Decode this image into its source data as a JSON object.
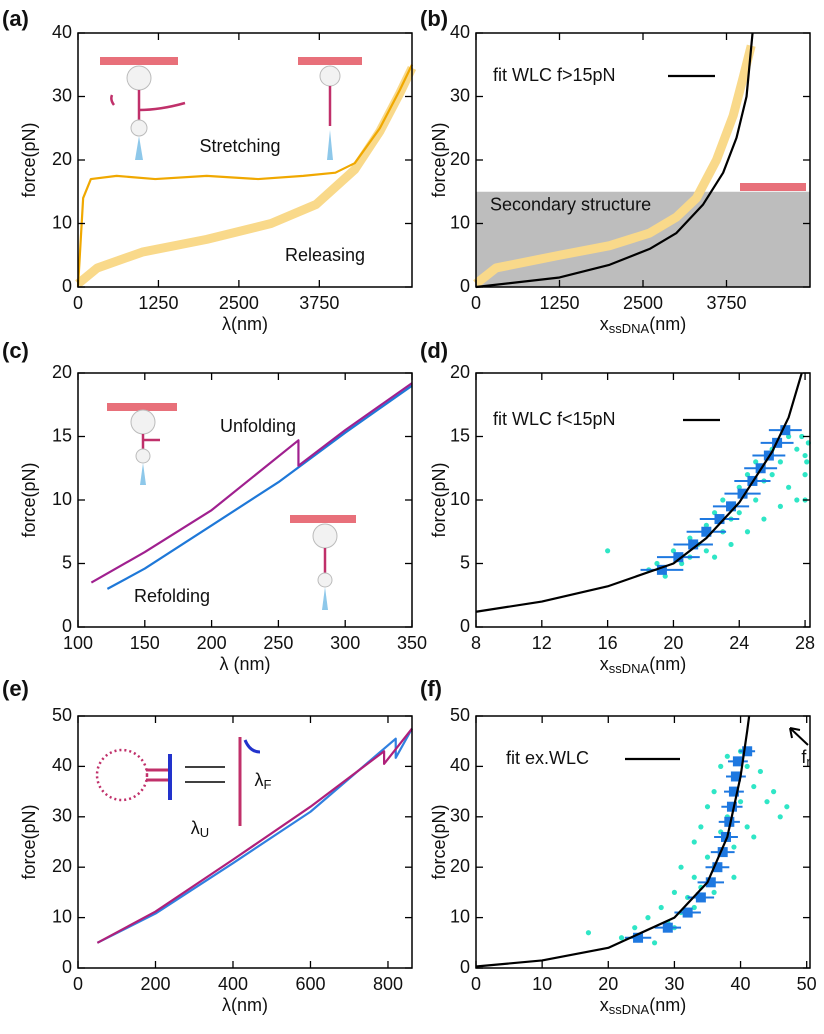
{
  "chart_data": [
    {
      "type": "line",
      "panel_label": "(a)",
      "xlabel": "λ(nm)",
      "ylabel": "force(pN)",
      "xlim": [
        0,
        5190
      ],
      "xticks": [
        0,
        1250,
        2500,
        3750
      ],
      "ylim": [
        0,
        40
      ],
      "yticks": [
        0,
        10,
        20,
        30,
        40
      ],
      "annotations": [
        "Stretching",
        "Releasing"
      ],
      "series": [
        {
          "type": "band",
          "color": "#f9d98a",
          "x": [
            0,
            300,
            1000,
            2000,
            3000,
            3700,
            4300,
            4690,
            5000,
            5190
          ],
          "values": [
            0.5,
            3,
            5.5,
            7.5,
            10,
            13,
            18.5,
            24.5,
            30.5,
            34.5
          ]
        },
        {
          "type": "line",
          "color": "#f0a800",
          "x": [
            0,
            80,
            200,
            600,
            1200,
            2000,
            2800,
            3500,
            4000,
            4300,
            4690,
            5000,
            5190
          ],
          "values": [
            0,
            14,
            17,
            17.5,
            17,
            17.5,
            17,
            17.5,
            18,
            19.5,
            25,
            31,
            35
          ]
        }
      ]
    },
    {
      "type": "line",
      "panel_label": "(b)",
      "xlabel": {
        "text": "x",
        "sub": "ssDNA",
        "after": "(nm)"
      },
      "ylabel": "force(pN)",
      "xlim": [
        0,
        5000
      ],
      "xticks": [
        0,
        1250,
        2500,
        3750
      ],
      "ylim": [
        0,
        40
      ],
      "yticks": [
        0,
        10,
        20,
        30,
        40
      ],
      "shaded_region": {
        "label": "Secondary structure",
        "ylim": [
          0,
          15
        ],
        "color": "#bdbdbd"
      },
      "series": [
        {
          "type": "band",
          "color": "#f9d98a",
          "x": [
            0,
            300,
            1250,
            2000,
            2600,
            3000,
            3300,
            3600,
            3850,
            4000,
            4120
          ],
          "values": [
            0.5,
            3,
            5,
            6.5,
            8.5,
            11,
            14,
            20,
            27,
            33,
            38
          ]
        },
        {
          "type": "line",
          "name": "fit WLC f>15pN",
          "color": "#000000",
          "x": [
            0,
            1250,
            2000,
            2600,
            3000,
            3400,
            3700,
            3900,
            4050,
            4140
          ],
          "values": [
            0,
            1.5,
            3.5,
            6,
            8.5,
            13,
            18,
            23.5,
            30,
            40
          ]
        }
      ]
    },
    {
      "type": "line",
      "panel_label": "(c)",
      "xlabel": "λ (nm)",
      "ylabel": "force(pN)",
      "xlim": [
        100,
        350
      ],
      "xticks": [
        100,
        150,
        200,
        250,
        300,
        350
      ],
      "ylim": [
        0,
        20
      ],
      "yticks": [
        0,
        5,
        10,
        15,
        20
      ],
      "annotations": [
        "Unfolding",
        "Refolding"
      ],
      "series": [
        {
          "type": "line",
          "color": "#1e78d8",
          "x": [
            122,
            150,
            200,
            250,
            300,
            350
          ],
          "values": [
            3,
            4.6,
            8,
            11.4,
            15.3,
            19
          ]
        },
        {
          "type": "line",
          "color": "#a0208f",
          "x": [
            110,
            150,
            200,
            265,
            265,
            300,
            350
          ],
          "values": [
            3.5,
            5.9,
            9.2,
            14.7,
            12.7,
            15.5,
            19.2
          ]
        }
      ]
    },
    {
      "type": "scatter",
      "panel_label": "(d)",
      "xlabel": {
        "text": "x",
        "sub": "ssDNA",
        "after": "(nm)"
      },
      "ylabel": "force(pN)",
      "xlim": [
        8,
        28.3
      ],
      "xticks": [
        8,
        12,
        16,
        20,
        24,
        28
      ],
      "ylim": [
        0,
        20
      ],
      "yticks": [
        0,
        5,
        10,
        15,
        20
      ],
      "series": [
        {
          "type": "scatter",
          "color": "#2fe6c6",
          "x": [
            16,
            18.5,
            19,
            19.5,
            20,
            20.5,
            21,
            21,
            21.5,
            22,
            22,
            22.5,
            23,
            23,
            23.5,
            24,
            24,
            24.5,
            25,
            25,
            25.5,
            26,
            26,
            26.5,
            27,
            27,
            27.5,
            28,
            28,
            28.2,
            27.8,
            28.1,
            23.5,
            25.5,
            27.5,
            22.5,
            26.5,
            24.5,
            28
          ],
          "values": [
            6,
            4.5,
            5,
            4,
            6,
            5,
            7,
            5.5,
            6.5,
            8,
            6,
            9,
            7.5,
            10,
            8.5,
            11,
            9,
            12,
            10,
            13,
            11.5,
            14,
            12,
            13,
            15,
            11,
            14,
            13.5,
            12,
            14.5,
            15,
            13,
            6.5,
            8.5,
            10,
            5.5,
            9.5,
            7.5,
            10
          ]
        },
        {
          "type": "binned",
          "color": "#1e78e0",
          "x": [
            19.3,
            20.3,
            21.2,
            22,
            22.8,
            23.5,
            24.2,
            24.8,
            25.3,
            25.8,
            26.3,
            26.8
          ],
          "values": [
            4.5,
            5.5,
            6.5,
            7.5,
            8.5,
            9.5,
            10.5,
            11.5,
            12.5,
            13.5,
            14.5,
            15.5
          ],
          "xerr": [
            1.3,
            1.3,
            1.2,
            1.2,
            1.2,
            1.1,
            1.1,
            1.1,
            1,
            1,
            1,
            1
          ]
        },
        {
          "type": "line",
          "name": "fit WLC f<15pN",
          "color": "#000000",
          "x": [
            8,
            12,
            16,
            20,
            22,
            24,
            26,
            27,
            27.8
          ],
          "values": [
            1.2,
            2,
            3.2,
            5,
            7,
            9.8,
            13.8,
            16.5,
            20
          ]
        }
      ]
    },
    {
      "type": "line",
      "panel_label": "(e)",
      "xlabel": "λ(nm)",
      "ylabel": "force(pN)",
      "xlim": [
        0,
        862
      ],
      "xticks": [
        0,
        200,
        400,
        600,
        800
      ],
      "ylim": [
        0,
        50
      ],
      "yticks": [
        0,
        10,
        20,
        30,
        40,
        50
      ],
      "annotations": [
        {
          "text": "λ",
          "sub": "F"
        },
        {
          "text": "λ",
          "sub": "U"
        },
        {
          "text": "f",
          "sub": "r"
        }
      ],
      "series": [
        {
          "type": "line",
          "color": "#3080e0",
          "x": [
            50,
            200,
            400,
            600,
            820,
            820,
            862
          ],
          "values": [
            5,
            10.8,
            20.8,
            31,
            45.5,
            41.7,
            47.5
          ]
        },
        {
          "type": "line",
          "color": "#b0207a",
          "x": [
            50,
            200,
            400,
            600,
            790,
            790,
            862
          ],
          "values": [
            5,
            11.2,
            21.5,
            32,
            43,
            40.5,
            47.5
          ]
        }
      ]
    },
    {
      "type": "scatter",
      "panel_label": "(f)",
      "xlabel": {
        "text": "x",
        "sub": "ssDNA",
        "after": "(nm)"
      },
      "ylabel": "force(pN)",
      "xlim": [
        0,
        50.5
      ],
      "xticks": [
        0,
        10,
        20,
        30,
        40,
        50
      ],
      "ylim": [
        0,
        50
      ],
      "yticks": [
        0,
        10,
        20,
        30,
        40,
        50
      ],
      "series": [
        {
          "type": "scatter",
          "color": "#2fe6c6",
          "x": [
            17,
            22,
            24,
            26,
            27,
            28,
            29,
            30,
            31,
            31,
            32,
            33,
            33,
            34,
            34,
            35,
            35,
            36,
            36,
            37,
            37,
            38,
            38,
            39,
            39,
            40,
            40,
            41,
            41,
            42,
            43,
            44,
            45,
            46,
            47,
            30,
            33,
            36,
            39,
            42
          ],
          "values": [
            7,
            6,
            8,
            10,
            5,
            12,
            9,
            15,
            11,
            20,
            14,
            18,
            25,
            16,
            28,
            22,
            32,
            20,
            35,
            27,
            40,
            30,
            42,
            24,
            38,
            33,
            43,
            28,
            40,
            36,
            39,
            33,
            35,
            30,
            32,
            8,
            12,
            15,
            18,
            26
          ]
        },
        {
          "type": "binned",
          "color": "#1e78e0",
          "x": [
            24.5,
            29,
            32,
            34,
            35.5,
            36.5,
            37.3,
            37.8,
            38.3,
            38.7,
            39,
            39.3,
            39.6,
            41
          ],
          "values": [
            6,
            8,
            11,
            14,
            17,
            20,
            23,
            26,
            29,
            32,
            35,
            38,
            41,
            43
          ],
          "xerr": [
            2,
            2,
            2,
            2,
            2,
            1.8,
            1.8,
            1.8,
            1.6,
            1.6,
            1.5,
            1.5,
            1.5,
            1.2
          ]
        },
        {
          "type": "line",
          "name": "fit ex.WLC",
          "color": "#000000",
          "x": [
            0,
            10,
            20,
            30,
            35,
            38,
            40,
            41,
            41.3
          ],
          "values": [
            0.3,
            1.5,
            4,
            10,
            17,
            26,
            38,
            47,
            50
          ]
        }
      ]
    }
  ]
}
